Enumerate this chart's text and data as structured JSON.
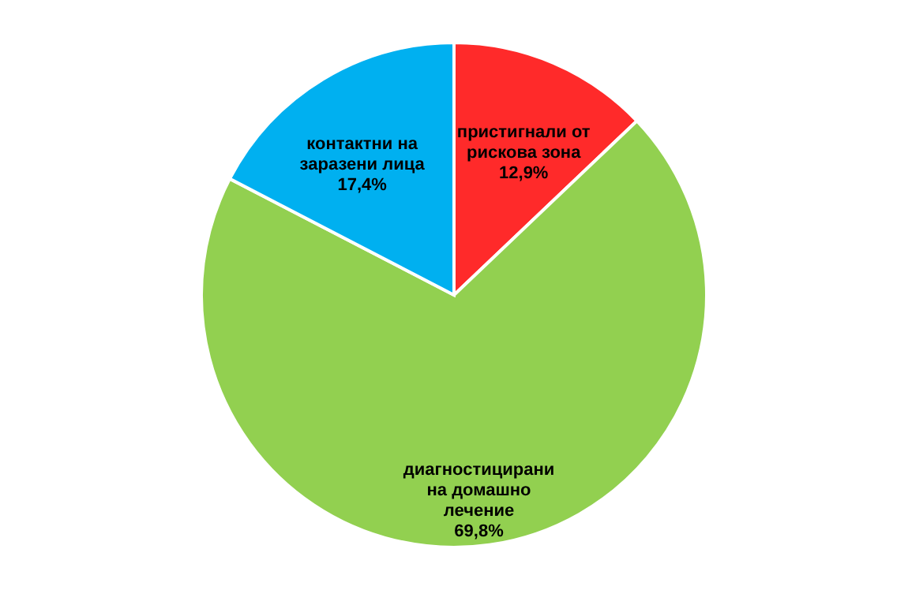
{
  "chart_data": {
    "type": "pie",
    "categories": [
      "пристигнали от рискова зона",
      "диагностицирани на домашно лечение",
      "контактни на заразени лица"
    ],
    "values": [
      12.9,
      69.8,
      17.4
    ],
    "colors": [
      "#ff2a2a",
      "#92d050",
      "#00b0f0"
    ],
    "value_labels": [
      "12,9%",
      "69,8%",
      "17,4%"
    ],
    "legend": false
  }
}
